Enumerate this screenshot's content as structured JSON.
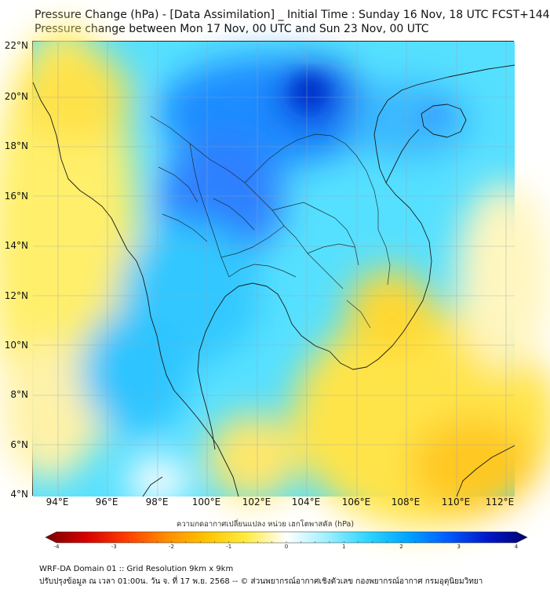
{
  "title_line1": "Pressure Change (hPa) - [Data Assimilation] _ Initial Time : Sunday 16 Nov, 18 UTC FCST+144",
  "title_line2": "Pressure change between Mon 17 Nov, 00 UTC and Sun 23 Nov, 00 UTC",
  "lat_labels": [
    "22°N",
    "20°N",
    "18°N",
    "16°N",
    "14°N",
    "12°N",
    "10°N",
    "8°N",
    "6°N",
    "4°N"
  ],
  "lon_labels": [
    "94°E",
    "96°E",
    "98°E",
    "100°E",
    "102°E",
    "104°E",
    "106°E",
    "108°E",
    "110°E",
    "112°E"
  ],
  "colorbar": {
    "title": "ความกดอากาศเปลี่ยนแปลง หน่วย เฮกโตพาสคัล (hPa)",
    "min": -4,
    "max": 4,
    "tick_labels": [
      "-4",
      "-3",
      "-2",
      "-1",
      "0",
      "1",
      "2",
      "3",
      "4"
    ],
    "colors": [
      "#7a0000",
      "#d40000",
      "#ff3b00",
      "#ff8c00",
      "#ffc400",
      "#ffec40",
      "#ffffff",
      "#9ff0ff",
      "#30d6ff",
      "#00a6ff",
      "#005cff",
      "#0018c8",
      "#000070"
    ]
  },
  "footer_line1": "WRF-DA Domain 01 :: Grid Resolution 9km x 9km",
  "footer_line2": "ปรับปรุงข้อมูล ณ เวลา 01:00น. วัน จ. ที่ 17 พ.ย. 2568 -- © ส่วนพยากรณ์อากาศเชิงตัวเลข กองพยากรณ์อากาศ กรมอุตุนิยมวิทยา"
}
